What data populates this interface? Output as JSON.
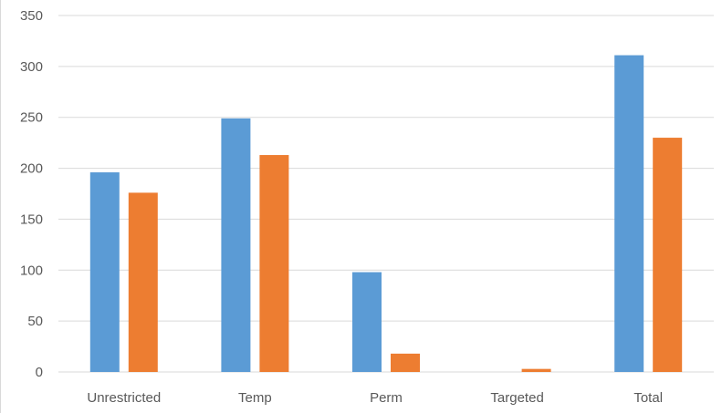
{
  "chart_data": {
    "type": "bar",
    "title": "",
    "xlabel": "",
    "ylabel": "",
    "categories": [
      "Unrestricted",
      "Temp",
      "Perm",
      "Targeted",
      "Total"
    ],
    "series": [
      {
        "color": "#5B9BD5",
        "values": [
          196,
          249,
          98,
          0,
          311
        ]
      },
      {
        "color": "#ED7D31",
        "values": [
          176,
          213,
          18,
          3,
          230
        ]
      }
    ],
    "y_ticks": [
      "0",
      "50",
      "100",
      "150",
      "200",
      "250",
      "300",
      "350"
    ],
    "ylim": [
      0,
      350
    ],
    "grid": true,
    "legend": "none",
    "gridline_color": "#d9d9d9"
  }
}
